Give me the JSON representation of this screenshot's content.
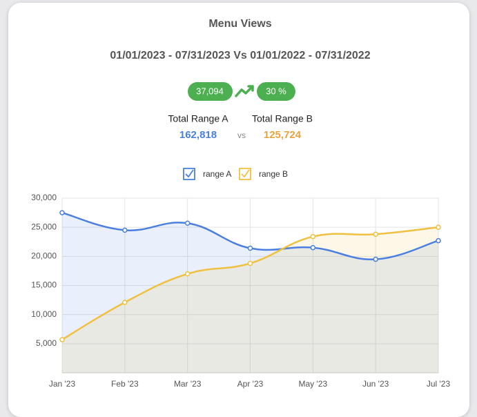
{
  "header": {
    "title": "Menu Views",
    "date_range": "01/01/2023 - 07/31/2023 Vs 01/01/2022 - 07/31/2022",
    "difference": "37,094",
    "percent": "30 %",
    "range_a_label": "Total Range A",
    "range_a_total": "162,818",
    "vs": "vs",
    "range_b_label": "Total Range B",
    "range_b_total": "125,724"
  },
  "chart_data": {
    "type": "line",
    "categories": [
      "Jan '23",
      "Feb '23",
      "Mar '23",
      "Apr '23",
      "May '23",
      "Jun '23",
      "Jul '23"
    ],
    "series": [
      {
        "name": "range A",
        "color": "#4a7fe0",
        "values": [
          27500,
          24500,
          25700,
          21400,
          21500,
          19500,
          22700
        ]
      },
      {
        "name": "range B",
        "color": "#f0c040",
        "values": [
          5700,
          12100,
          17000,
          18800,
          23400,
          23800,
          25000
        ]
      }
    ],
    "ylim": [
      0,
      30000
    ],
    "yticks": [
      {
        "value": 5000,
        "label": "5,000"
      },
      {
        "value": 10000,
        "label": "10,000"
      },
      {
        "value": 15000,
        "label": "15,000"
      },
      {
        "value": 20000,
        "label": "20,000"
      },
      {
        "value": 25000,
        "label": "25,000"
      },
      {
        "value": 30000,
        "label": "30,000"
      }
    ],
    "grid": true,
    "legend": "top"
  }
}
